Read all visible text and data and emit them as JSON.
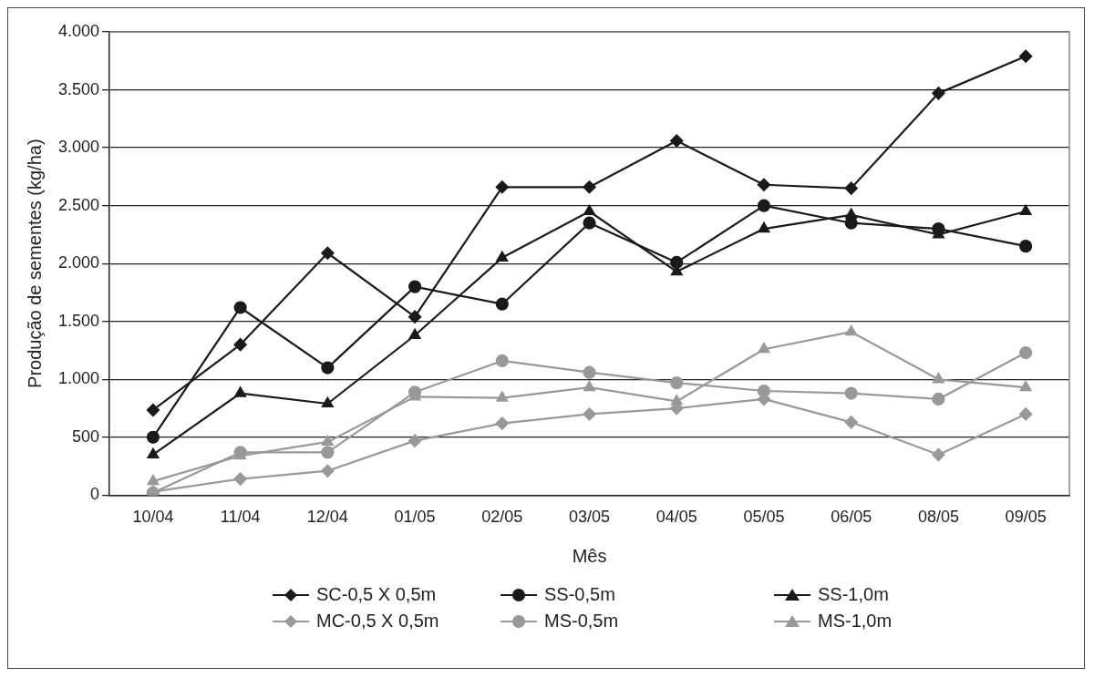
{
  "chart_data": {
    "type": "line",
    "xlabel": "Mês",
    "ylabel": "Produção de sementes (kg/ha)",
    "categories": [
      "10/04",
      "11/04",
      "12/04",
      "01/05",
      "02/05",
      "03/05",
      "04/05",
      "05/05",
      "06/05",
      "08/05",
      "09/05"
    ],
    "ylim": [
      0,
      4000
    ],
    "yticks": [
      0,
      500,
      {
        "value": 1000,
        "label": "1.000"
      },
      {
        "value": 1500,
        "label": "1.500"
      },
      {
        "value": 2000,
        "label": "2.000"
      },
      {
        "value": 2500,
        "label": "2.500"
      },
      {
        "value": 3000,
        "label": "3.000"
      },
      {
        "value": 3500,
        "label": "3.500"
      },
      {
        "value": 4000,
        "label": "4.000"
      }
    ],
    "grid": "y",
    "legend": "bottom",
    "line_style": "solid",
    "series": [
      {
        "name": "SC-0,5 X 0,5m",
        "color": "#1a1a1a",
        "marker": "diamond",
        "values": [
          735,
          1300,
          2090,
          1540,
          2660,
          2660,
          3060,
          2680,
          2650,
          3470,
          3790
        ]
      },
      {
        "name": "SS-0,5m",
        "color": "#1a1a1a",
        "marker": "circle",
        "values": [
          500,
          1620,
          1100,
          1800,
          1650,
          2350,
          2010,
          2500,
          2350,
          2300,
          2150
        ]
      },
      {
        "name": "SS-1,0m",
        "color": "#1a1a1a",
        "marker": "triangle",
        "values": [
          350,
          880,
          790,
          1380,
          2050,
          2450,
          1930,
          2300,
          2420,
          2250,
          2450
        ]
      },
      {
        "name": "MC-0,5 X 0,5m",
        "color": "#999999",
        "marker": "diamond",
        "values": [
          30,
          140,
          210,
          470,
          620,
          700,
          750,
          830,
          630,
          350,
          700
        ]
      },
      {
        "name": "MS-0,5m",
        "color": "#999999",
        "marker": "circle",
        "values": [
          20,
          370,
          370,
          890,
          1160,
          1060,
          970,
          900,
          880,
          830,
          1230
        ]
      },
      {
        "name": "MS-1,0m",
        "color": "#999999",
        "marker": "triangle",
        "values": [
          120,
          340,
          460,
          850,
          840,
          930,
          810,
          1260,
          1410,
          1000,
          930
        ]
      }
    ]
  }
}
